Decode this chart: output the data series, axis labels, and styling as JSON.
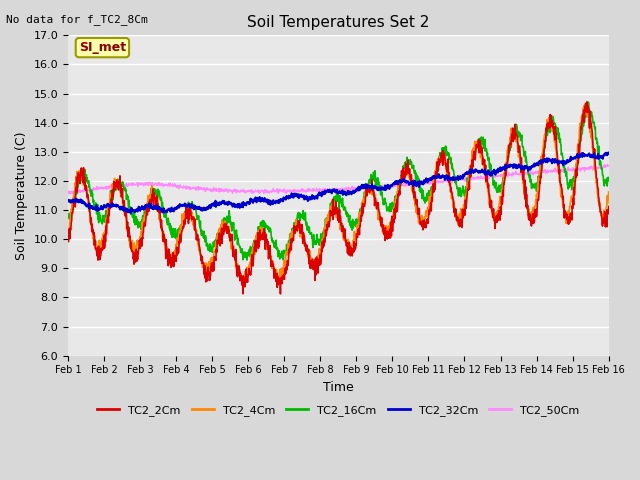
{
  "title": "Soil Temperatures Set 2",
  "xlabel": "Time",
  "ylabel": "Soil Temperature (C)",
  "top_left_text": "No data for f_TC2_8Cm",
  "annotation_text": "SI_met",
  "ylim": [
    6.0,
    17.0
  ],
  "yticks": [
    6.0,
    7.0,
    8.0,
    9.0,
    10.0,
    11.0,
    12.0,
    13.0,
    14.0,
    15.0,
    16.0,
    17.0
  ],
  "xtick_labels": [
    "Feb 1",
    "Feb 2",
    "Feb 3",
    "Feb 4",
    "Feb 5",
    "Feb 6",
    "Feb 7",
    "Feb 8",
    "Feb 9",
    "Feb 10",
    "Feb 11",
    "Feb 12",
    "Feb 13",
    "Feb 14",
    "Feb 15",
    "Feb 16"
  ],
  "series": {
    "TC2_2Cm": {
      "color": "#DD0000",
      "lw": 1.2
    },
    "TC2_4Cm": {
      "color": "#FF8800",
      "lw": 1.2
    },
    "TC2_16Cm": {
      "color": "#00BB00",
      "lw": 1.2
    },
    "TC2_32Cm": {
      "color": "#0000CC",
      "lw": 1.5
    },
    "TC2_50Cm": {
      "color": "#FF88FF",
      "lw": 1.0
    }
  },
  "fig_bg_color": "#D8D8D8",
  "plot_bg_color": "#E8E8E8",
  "grid_color": "#FFFFFF"
}
